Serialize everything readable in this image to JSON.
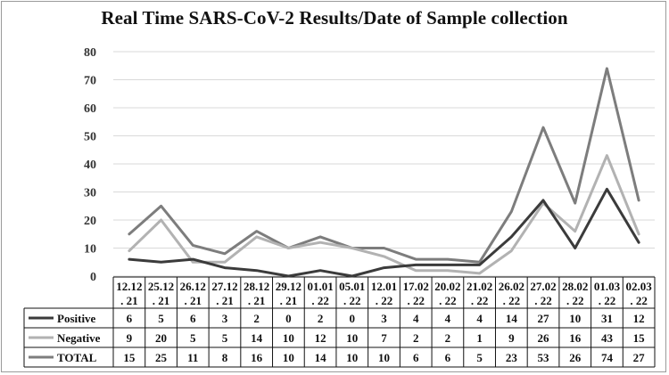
{
  "chart_data": {
    "type": "line",
    "title": "Real Time SARS-CoV-2 Results/Date of Sample collection",
    "categories": [
      [
        "12.12",
        ". 21"
      ],
      [
        "25.12",
        ". 21"
      ],
      [
        "26.12",
        ". 21"
      ],
      [
        "27.12",
        ". 21"
      ],
      [
        "28.12",
        ". 21"
      ],
      [
        "29.12",
        ". 21"
      ],
      [
        "01.01",
        ". 22"
      ],
      [
        "05.01",
        ". 22"
      ],
      [
        "12.01",
        ". 22"
      ],
      [
        "17.02",
        ". 22"
      ],
      [
        "20.02",
        ". 22"
      ],
      [
        "21.02",
        ". 22"
      ],
      [
        "26.02",
        ". 22"
      ],
      [
        "27.02",
        ". 22"
      ],
      [
        "28.02",
        ". 22"
      ],
      [
        "01.03",
        ". 22"
      ],
      [
        "02.03",
        ". 22"
      ]
    ],
    "ylim": [
      0,
      80
    ],
    "yticks": [
      0,
      10,
      20,
      30,
      40,
      50,
      60,
      70,
      80
    ],
    "grid": true,
    "legend": "data-table",
    "series": [
      {
        "name": "Positive",
        "color": "#3b3b3b",
        "values": [
          6,
          5,
          6,
          3,
          2,
          0,
          2,
          0,
          3,
          4,
          4,
          4,
          14,
          27,
          10,
          31,
          12
        ]
      },
      {
        "name": "Negative",
        "color": "#b2b2b2",
        "values": [
          9,
          20,
          5,
          5,
          14,
          10,
          12,
          10,
          7,
          2,
          2,
          1,
          9,
          26,
          16,
          43,
          15
        ]
      },
      {
        "name": "TOTAL",
        "color": "#7d7d7d",
        "values": [
          15,
          25,
          11,
          8,
          16,
          10,
          14,
          10,
          10,
          6,
          6,
          5,
          23,
          53,
          26,
          74,
          27
        ]
      }
    ]
  }
}
